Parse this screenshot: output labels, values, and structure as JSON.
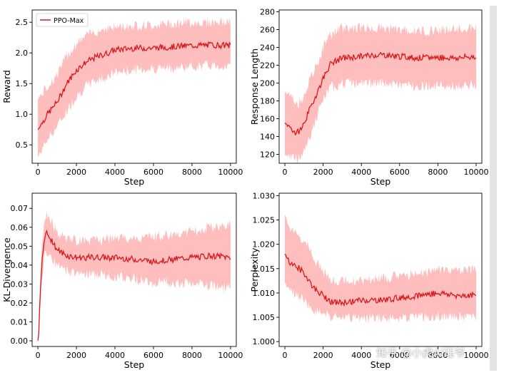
{
  "watermark": "知乎 @小虎AI珏爷",
  "chart_data": [
    {
      "type": "line",
      "xlabel": "Step",
      "ylabel": "Reward",
      "xlim": [
        -300,
        10300
      ],
      "ylim": [
        0.2,
        2.7
      ],
      "xticks": [
        0,
        2000,
        4000,
        6000,
        8000,
        10000
      ],
      "yticks": [
        0.5,
        1.0,
        1.5,
        2.0,
        2.5
      ],
      "ytick_labels": [
        "0.5",
        "1.0",
        "1.5",
        "2.0",
        "2.5"
      ],
      "legend": {
        "position": "top-left",
        "entries": [
          "PPO-Max"
        ]
      },
      "series": [
        {
          "name": "PPO-Max",
          "color": "#d7191c",
          "band_color": "#ffb3b3",
          "x": [
            0,
            500,
            1000,
            1500,
            2000,
            2500,
            3000,
            3500,
            4000,
            5000,
            6000,
            7000,
            8000,
            9000,
            10000
          ],
          "y": [
            0.75,
            1.0,
            1.2,
            1.5,
            1.72,
            1.85,
            1.93,
            1.98,
            2.05,
            2.08,
            2.08,
            2.1,
            2.12,
            2.13,
            2.12
          ],
          "lower": [
            0.3,
            0.6,
            0.8,
            1.05,
            1.3,
            1.45,
            1.55,
            1.6,
            1.68,
            1.72,
            1.75,
            1.75,
            1.78,
            1.8,
            1.78
          ],
          "upper": [
            1.25,
            1.45,
            1.65,
            1.95,
            2.15,
            2.28,
            2.35,
            2.4,
            2.42,
            2.45,
            2.45,
            2.48,
            2.5,
            2.5,
            2.5
          ]
        }
      ]
    },
    {
      "type": "line",
      "xlabel": "Step",
      "ylabel": "Response Length",
      "xlim": [
        -300,
        10300
      ],
      "ylim": [
        110,
        282
      ],
      "xticks": [
        0,
        2000,
        4000,
        6000,
        8000,
        10000
      ],
      "yticks": [
        120,
        140,
        160,
        180,
        200,
        220,
        240,
        260,
        280
      ],
      "ytick_labels": [
        "120",
        "140",
        "160",
        "180",
        "200",
        "220",
        "240",
        "260",
        "280"
      ],
      "series": [
        {
          "color": "#d7191c",
          "band_color": "#ffb3b3",
          "x": [
            0,
            300,
            600,
            900,
            1200,
            1500,
            1800,
            2100,
            2400,
            3000,
            4000,
            5000,
            6000,
            7000,
            8000,
            9000,
            10000
          ],
          "y": [
            155,
            150,
            143,
            150,
            165,
            180,
            195,
            210,
            222,
            228,
            230,
            232,
            230,
            228,
            229,
            228,
            230
          ],
          "lower": [
            120,
            118,
            115,
            120,
            135,
            150,
            170,
            185,
            195,
            200,
            200,
            200,
            198,
            197,
            197,
            196,
            198
          ],
          "upper": [
            190,
            185,
            175,
            182,
            198,
            212,
            228,
            245,
            255,
            262,
            262,
            262,
            260,
            258,
            260,
            260,
            262
          ]
        }
      ]
    },
    {
      "type": "line",
      "xlabel": "Step",
      "ylabel": "KL-Divergence",
      "xlim": [
        -300,
        10300
      ],
      "ylim": [
        -0.003,
        0.078
      ],
      "xticks": [
        0,
        2000,
        4000,
        6000,
        8000,
        10000
      ],
      "yticks": [
        0.0,
        0.01,
        0.02,
        0.03,
        0.04,
        0.05,
        0.06,
        0.07
      ],
      "ytick_labels": [
        "0.00",
        "0.01",
        "0.02",
        "0.03",
        "0.04",
        "0.05",
        "0.06",
        "0.07"
      ],
      "series": [
        {
          "color": "#d7191c",
          "band_color": "#ffb3b3",
          "x": [
            0,
            50,
            100,
            200,
            300,
            400,
            600,
            800,
            1000,
            1500,
            2000,
            3000,
            4000,
            5000,
            6000,
            7000,
            8000,
            9000,
            10000
          ],
          "y": [
            0.0,
            0.005,
            0.02,
            0.04,
            0.05,
            0.057,
            0.055,
            0.052,
            0.048,
            0.045,
            0.044,
            0.044,
            0.044,
            0.043,
            0.042,
            0.043,
            0.044,
            0.045,
            0.044
          ],
          "lower": [
            0.0,
            0.003,
            0.015,
            0.032,
            0.042,
            0.048,
            0.046,
            0.043,
            0.039,
            0.037,
            0.036,
            0.035,
            0.034,
            0.033,
            0.031,
            0.031,
            0.03,
            0.029,
            0.028
          ],
          "upper": [
            0.001,
            0.008,
            0.026,
            0.049,
            0.06,
            0.067,
            0.065,
            0.061,
            0.057,
            0.054,
            0.053,
            0.053,
            0.054,
            0.054,
            0.055,
            0.056,
            0.058,
            0.06,
            0.062
          ]
        }
      ]
    },
    {
      "type": "line",
      "xlabel": "Step",
      "ylabel": "Perplexity",
      "xlim": [
        -300,
        10300
      ],
      "ylim": [
        0.999,
        1.0305
      ],
      "xticks": [
        0,
        2000,
        4000,
        6000,
        8000,
        10000
      ],
      "yticks": [
        1.0,
        1.005,
        1.01,
        1.015,
        1.02,
        1.025,
        1.03
      ],
      "ytick_labels": [
        "1.000",
        "1.005",
        "1.010",
        "1.015",
        "1.020",
        "1.025",
        "1.030"
      ],
      "series": [
        {
          "color": "#d7191c",
          "band_color": "#ffb3b3",
          "x": [
            0,
            300,
            600,
            900,
            1200,
            1500,
            2000,
            2500,
            3000,
            4000,
            5000,
            6000,
            7000,
            8000,
            9000,
            10000
          ],
          "y": [
            1.018,
            1.016,
            1.0155,
            1.0145,
            1.013,
            1.011,
            1.0095,
            1.008,
            1.008,
            1.0085,
            1.0085,
            1.009,
            1.0095,
            1.01,
            1.0095,
            1.0095
          ],
          "lower": [
            1.012,
            1.01,
            1.0095,
            1.009,
            1.0075,
            1.0065,
            1.0055,
            1.005,
            1.0048,
            1.0048,
            1.0048,
            1.005,
            1.005,
            1.0052,
            1.005,
            1.005
          ],
          "upper": [
            1.026,
            1.023,
            1.022,
            1.021,
            1.0195,
            1.017,
            1.0145,
            1.0125,
            1.0125,
            1.0125,
            1.013,
            1.0135,
            1.014,
            1.015,
            1.0145,
            1.0145
          ]
        }
      ]
    }
  ]
}
